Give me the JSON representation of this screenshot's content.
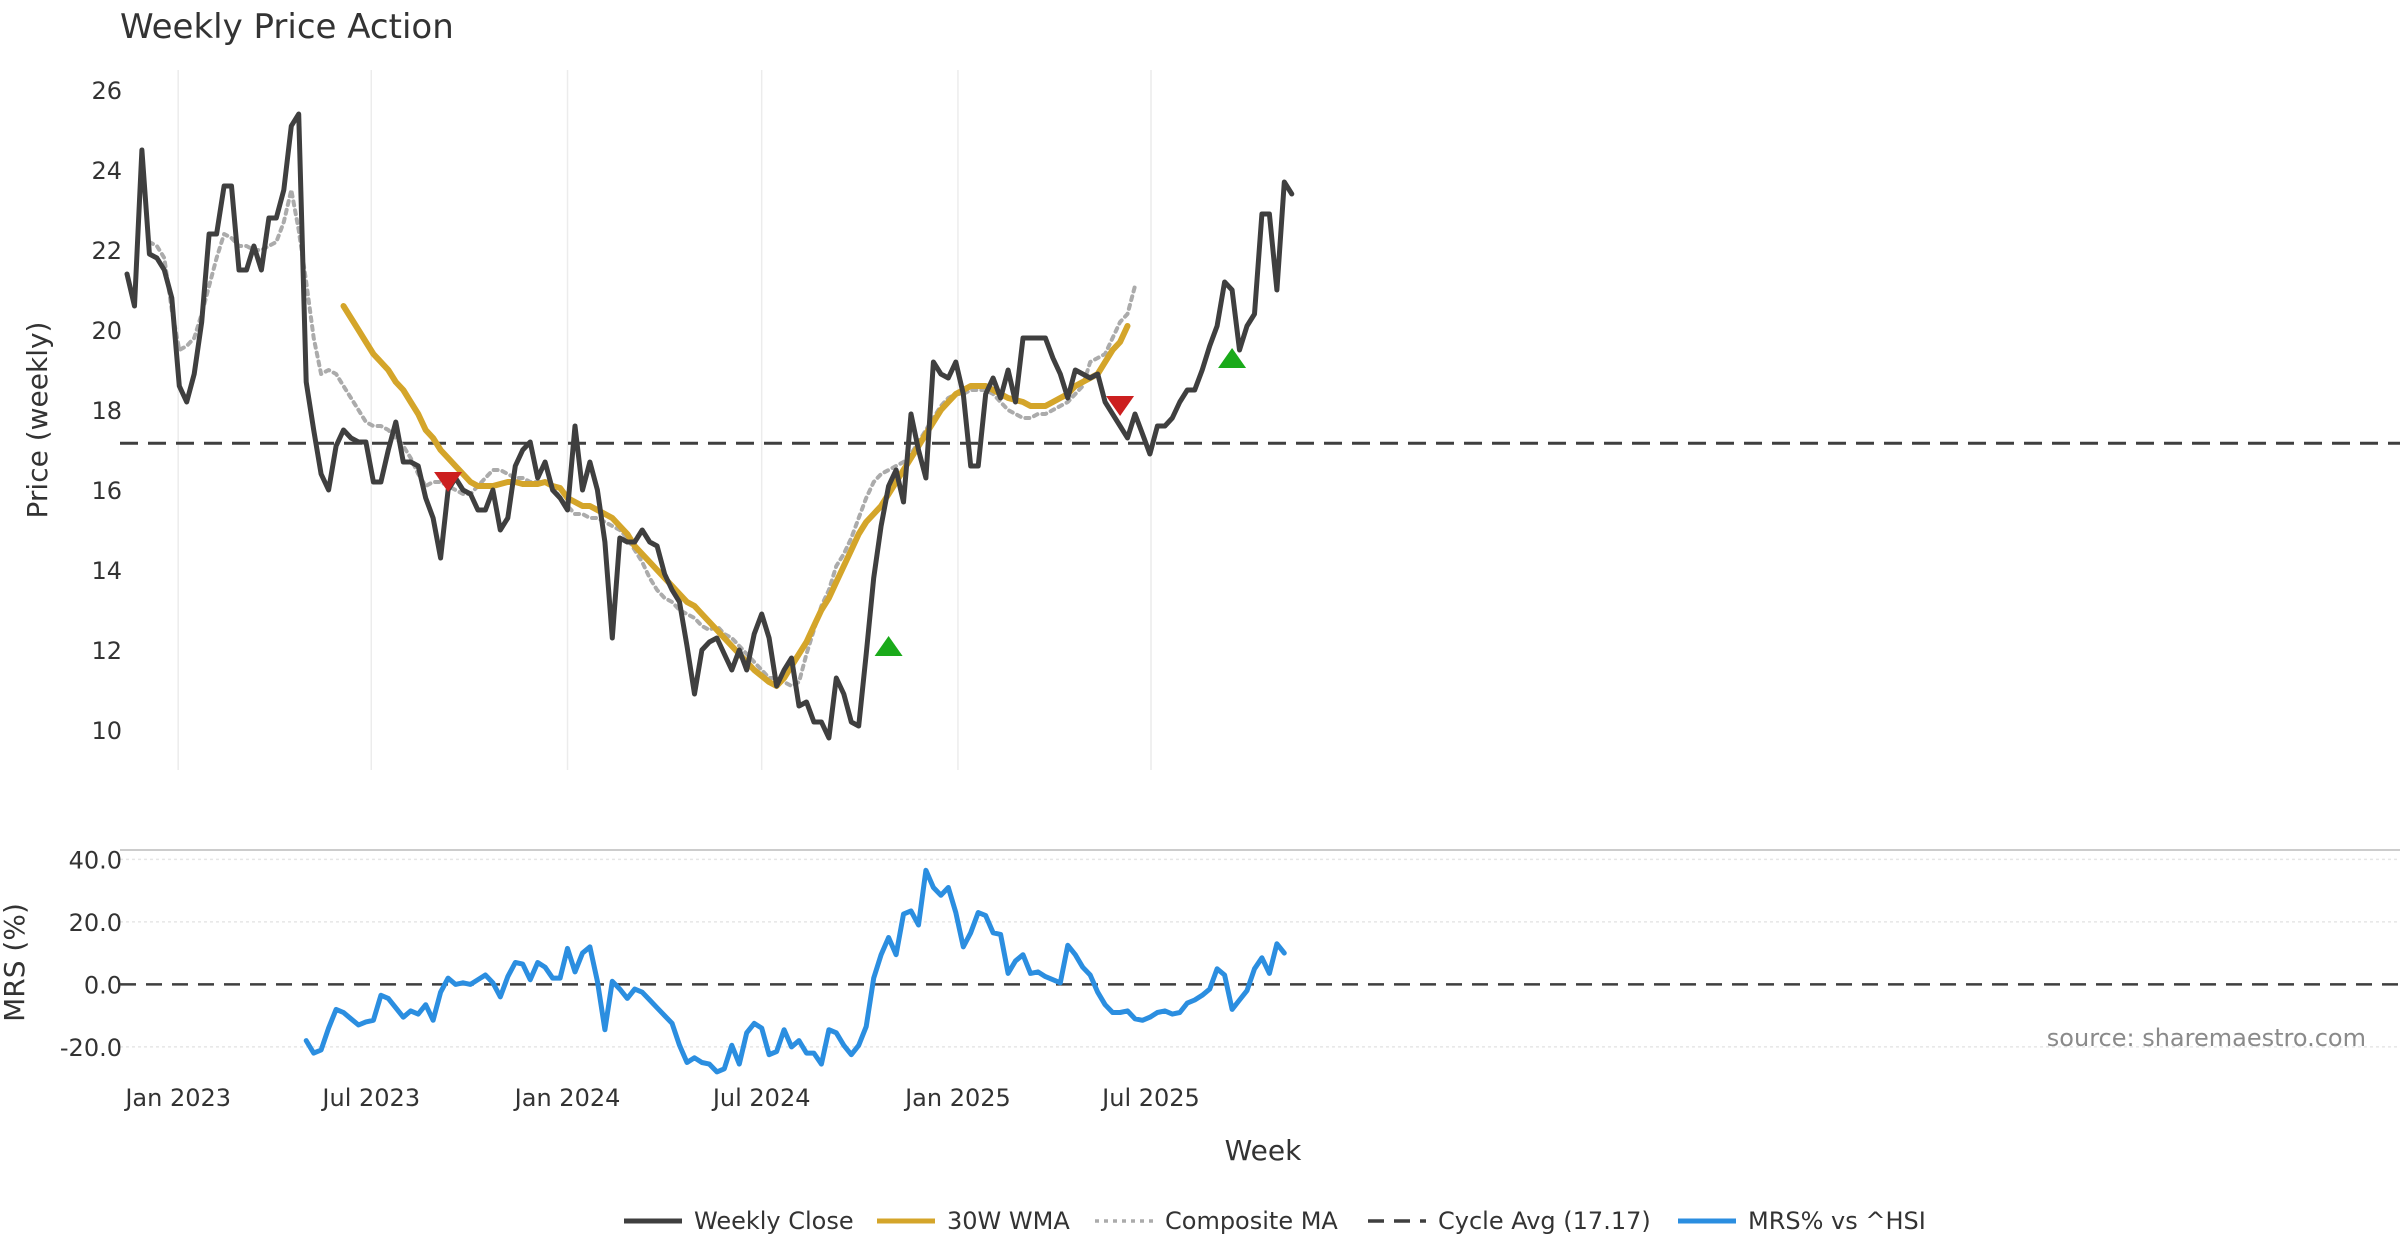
{
  "chart_data": [
    {
      "type": "line",
      "title": "Weekly Price Action",
      "ylabel": "Price (weekly)",
      "ylim": [
        9,
        26.5
      ],
      "yticks": [
        10,
        12,
        14,
        16,
        18,
        20,
        22,
        24,
        26
      ],
      "grid": "vertical",
      "x_start": "2022-11-14",
      "x_step_days": 7,
      "x_end": "2025-11-03",
      "cycle_avg": 17.17,
      "series": [
        {
          "name": "Weekly Close",
          "color": "#3f3f3f",
          "style": "solid",
          "offset": 0,
          "values": [
            21.4,
            20.6,
            24.5,
            21.9,
            21.8,
            21.5,
            20.8,
            18.6,
            18.2,
            18.9,
            20.2,
            22.4,
            22.4,
            23.6,
            23.6,
            21.5,
            21.5,
            22.1,
            21.5,
            22.8,
            22.8,
            23.5,
            25.1,
            25.4,
            18.7,
            17.5,
            16.4,
            16.0,
            17.1,
            17.5,
            17.3,
            17.2,
            17.2,
            16.2,
            16.2,
            17.0,
            17.7,
            16.7,
            16.7,
            16.6,
            15.8,
            15.3,
            14.3,
            16.0,
            16.3,
            16.0,
            15.9,
            15.5,
            15.5,
            16.0,
            15.0,
            15.3,
            16.6,
            17.0,
            17.2,
            16.3,
            16.7,
            16.0,
            15.8,
            15.5,
            17.6,
            16.0,
            16.7,
            16.0,
            14.7,
            12.3,
            14.8,
            14.7,
            14.7,
            15.0,
            14.7,
            14.6,
            13.9,
            13.5,
            13.2,
            12.1,
            10.9,
            12.0,
            12.2,
            12.3,
            11.9,
            11.5,
            12.0,
            11.5,
            12.4,
            12.9,
            12.3,
            11.1,
            11.5,
            11.8,
            10.6,
            10.7,
            10.2,
            10.2,
            9.8,
            11.3,
            10.9,
            10.2,
            10.1,
            11.9,
            13.8,
            15.1,
            16.1,
            16.5,
            15.7,
            17.9,
            17.0,
            16.3,
            19.2,
            18.9,
            18.8,
            19.2,
            18.4,
            16.6,
            16.6,
            18.4,
            18.8,
            18.3,
            19.0,
            18.2,
            19.8,
            19.8,
            19.8,
            19.8,
            19.3,
            18.9,
            18.3,
            19.0,
            18.9,
            18.8,
            18.9,
            18.2,
            17.9,
            17.6,
            17.3,
            17.9,
            17.4,
            16.9,
            17.6,
            17.6,
            17.8,
            18.2,
            18.5,
            18.5,
            19.0,
            19.6,
            20.1,
            21.2,
            21.0,
            19.5,
            20.1,
            20.4,
            22.9,
            22.9,
            21.0,
            23.7,
            23.4
          ]
        },
        {
          "name": "30W WMA",
          "color": "#d4a52a",
          "style": "solid",
          "offset": 29,
          "values": [
            20.6,
            20.3,
            20.0,
            19.7,
            19.4,
            19.2,
            19.0,
            18.7,
            18.5,
            18.2,
            17.9,
            17.5,
            17.3,
            17.0,
            16.8,
            16.6,
            16.4,
            16.2,
            16.1,
            16.1,
            16.1,
            16.15,
            16.2,
            16.2,
            16.15,
            16.15,
            16.15,
            16.2,
            16.1,
            16.05,
            15.8,
            15.7,
            15.6,
            15.6,
            15.5,
            15.4,
            15.3,
            15.1,
            14.9,
            14.6,
            14.4,
            14.2,
            14.0,
            13.8,
            13.6,
            13.4,
            13.2,
            13.1,
            12.9,
            12.7,
            12.5,
            12.3,
            12.1,
            11.9,
            11.7,
            11.5,
            11.35,
            11.2,
            11.1,
            11.3,
            11.6,
            11.9,
            12.2,
            12.6,
            13.0,
            13.3,
            13.7,
            14.1,
            14.5,
            14.9,
            15.2,
            15.4,
            15.6,
            15.9,
            16.2,
            16.5,
            16.8,
            17.1,
            17.4,
            17.7,
            18.0,
            18.2,
            18.4,
            18.5,
            18.6,
            18.6,
            18.6,
            18.5,
            18.4,
            18.3,
            18.25,
            18.2,
            18.1,
            18.1,
            18.1,
            18.2,
            18.3,
            18.4,
            18.6,
            18.7,
            18.8,
            18.9,
            19.2,
            19.5,
            19.7,
            20.1
          ]
        },
        {
          "name": "Composite MA",
          "color": "#ababab",
          "style": "dotted",
          "offset": 3,
          "values": [
            22.2,
            22.1,
            21.8,
            20.5,
            19.5,
            19.6,
            19.8,
            20.4,
            21.1,
            21.8,
            22.4,
            22.3,
            22.1,
            22.1,
            22.0,
            22.0,
            22.1,
            22.2,
            22.7,
            23.5,
            22.5,
            21.2,
            19.8,
            18.9,
            19.0,
            18.9,
            18.6,
            18.3,
            18.0,
            17.7,
            17.6,
            17.6,
            17.5,
            17.3,
            17.1,
            16.8,
            16.4,
            16.1,
            16.2,
            16.2,
            16.1,
            16.0,
            15.9,
            15.9,
            16.1,
            16.3,
            16.5,
            16.5,
            16.4,
            16.3,
            16.3,
            16.2,
            16.2,
            16.2,
            16.1,
            15.8,
            15.6,
            15.4,
            15.4,
            15.3,
            15.3,
            15.2,
            15.1,
            15.0,
            14.8,
            14.5,
            14.2,
            13.8,
            13.5,
            13.3,
            13.2,
            13.0,
            12.9,
            12.8,
            12.6,
            12.5,
            12.6,
            12.4,
            12.3,
            12.1,
            11.9,
            11.7,
            11.5,
            11.3,
            11.3,
            11.2,
            11.1,
            11.2,
            11.9,
            12.5,
            13.1,
            13.5,
            14.1,
            14.4,
            14.8,
            15.3,
            15.8,
            16.2,
            16.4,
            16.5,
            16.6,
            16.7,
            16.9,
            17.2,
            17.5,
            17.8,
            18.1,
            18.3,
            18.4,
            18.4,
            18.5,
            18.5,
            18.5,
            18.4,
            18.2,
            18.0,
            17.9,
            17.8,
            17.8,
            17.9,
            17.9,
            18.0,
            18.1,
            18.2,
            18.4,
            18.6,
            19.2,
            19.3,
            19.4,
            19.8,
            20.2,
            20.4,
            21.1
          ]
        }
      ],
      "signals": [
        {
          "type": "sell",
          "x": 43,
          "y": 16.2,
          "color": "#cc1f1f"
        },
        {
          "type": "buy",
          "x": 102,
          "y": 12.1,
          "color": "#1aaa1a"
        },
        {
          "type": "sell",
          "x": 133,
          "y": 18.1,
          "color": "#cc1f1f"
        },
        {
          "type": "buy",
          "x": 148,
          "y": 19.3,
          "color": "#1aaa1a"
        }
      ]
    },
    {
      "type": "line",
      "ylabel": "MRS (%)",
      "ylim": [
        -29,
        43
      ],
      "yticks": [
        -20.0,
        0.0,
        20.0,
        40.0
      ],
      "ytick_labels": [
        "-20.0",
        "0.0",
        "20.0",
        "40.0"
      ],
      "xlabel": "Week",
      "xtick_labels": [
        "Jan 2023",
        "Jul 2023",
        "Jan 2024",
        "Jul 2024",
        "Jan 2025",
        "Jul 2025"
      ],
      "xtick_dates": [
        "2023-01-01",
        "2023-07-01",
        "2024-01-01",
        "2024-07-01",
        "2025-01-01",
        "2025-07-01"
      ],
      "source": "source: sharemaestro.com",
      "series": [
        {
          "name": "MRS% vs ^HSI",
          "color": "#2b8ee0",
          "style": "solid",
          "offset": 24,
          "values": [
            -18.0,
            -22.0,
            -21.0,
            -14.0,
            -8.0,
            -9.0,
            -11.0,
            -13.0,
            -12.0,
            -11.5,
            -3.5,
            -4.5,
            -7.5,
            -10.5,
            -8.5,
            -9.5,
            -6.5,
            -11.5,
            -2.5,
            2.0,
            0.0,
            0.5,
            0.0,
            1.5,
            3.0,
            0.5,
            -4.0,
            2.5,
            7.0,
            6.5,
            1.5,
            7.0,
            5.5,
            2.0,
            2.0,
            11.5,
            4.0,
            10.0,
            12.0,
            1.0,
            -14.5,
            1.0,
            -1.5,
            -4.5,
            -1.5,
            -2.5,
            -5.0,
            -7.5,
            -10.0,
            -12.5,
            -19.5,
            -25.0,
            -23.5,
            -25.0,
            -25.5,
            -28.0,
            -27.0,
            -19.5,
            -25.5,
            -15.5,
            -12.5,
            -14.0,
            -22.5,
            -21.5,
            -14.5,
            -20.0,
            -18.0,
            -22.0,
            -22.0,
            -25.5,
            -14.5,
            -15.5,
            -19.5,
            -22.5,
            -19.5,
            -13.5,
            2.0,
            9.5,
            15.0,
            9.5,
            22.5,
            23.5,
            19.0,
            36.5,
            31.0,
            28.5,
            31.0,
            23.0,
            12.0,
            16.5,
            23.0,
            22.0,
            16.5,
            16.0,
            3.5,
            7.5,
            9.5,
            3.5,
            4.0,
            2.5,
            1.5,
            0.5,
            12.5,
            9.5,
            5.5,
            3.0,
            -2.5,
            -6.5,
            -9.0,
            -9.0,
            -8.5,
            -11.0,
            -11.5,
            -10.5,
            -9.0,
            -8.5,
            -9.5,
            -9.0,
            -6.0,
            -5.0,
            -3.5,
            -1.5,
            5.0,
            3.0,
            -8.0,
            -5.0,
            -2.0,
            5.0,
            8.5,
            3.5,
            13.0,
            10.0
          ]
        }
      ]
    }
  ],
  "legend": [
    {
      "label": "Weekly Close",
      "color": "#3f3f3f",
      "style": "solid"
    },
    {
      "label": "30W WMA",
      "color": "#d4a52a",
      "style": "solid"
    },
    {
      "label": "Composite MA",
      "color": "#ababab",
      "style": "dotted"
    },
    {
      "label": "Cycle Avg (17.17)",
      "color": "#3f3f3f",
      "style": "dashed"
    },
    {
      "label": "MRS% vs ^HSI",
      "color": "#2b8ee0",
      "style": "solid"
    }
  ]
}
